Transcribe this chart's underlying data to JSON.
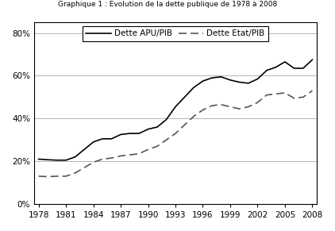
{
  "title": "Graphique 1 : Evolution de la dette publique de 1978 à 2008",
  "legend_apu": "Dette APU/PIB",
  "legend_etat": "Dette Etat/PIB",
  "years": [
    1978,
    1979,
    1980,
    1981,
    1982,
    1983,
    1984,
    1985,
    1986,
    1987,
    1988,
    1989,
    1990,
    1991,
    1992,
    1993,
    1994,
    1995,
    1996,
    1997,
    1998,
    1999,
    2000,
    2001,
    2002,
    2003,
    2004,
    2005,
    2006,
    2007,
    2008
  ],
  "dette_apu": [
    0.21,
    0.207,
    0.205,
    0.205,
    0.22,
    0.255,
    0.29,
    0.305,
    0.305,
    0.325,
    0.33,
    0.33,
    0.35,
    0.36,
    0.395,
    0.455,
    0.5,
    0.545,
    0.575,
    0.59,
    0.595,
    0.58,
    0.57,
    0.565,
    0.585,
    0.625,
    0.64,
    0.665,
    0.635,
    0.635,
    0.675
  ],
  "dette_etat": [
    0.13,
    0.128,
    0.13,
    0.13,
    0.145,
    0.17,
    0.195,
    0.21,
    0.215,
    0.225,
    0.23,
    0.235,
    0.255,
    0.27,
    0.3,
    0.33,
    0.37,
    0.41,
    0.44,
    0.46,
    0.465,
    0.455,
    0.445,
    0.455,
    0.475,
    0.51,
    0.515,
    0.52,
    0.495,
    0.5,
    0.53
  ],
  "ylim": [
    0.0,
    0.85
  ],
  "yticks": [
    0.0,
    0.2,
    0.4,
    0.6,
    0.8
  ],
  "yticklabels": [
    "0%",
    "20%",
    "40%",
    "60%",
    "80%"
  ],
  "xticks": [
    1978,
    1981,
    1984,
    1987,
    1990,
    1993,
    1996,
    1999,
    2002,
    2005,
    2008
  ],
  "line_color_apu": "#000000",
  "line_color_etat": "#555555",
  "bg_color": "#ffffff",
  "grid_color": "#aaaaaa",
  "xlim_left": 1977.5,
  "xlim_right": 2008.5
}
